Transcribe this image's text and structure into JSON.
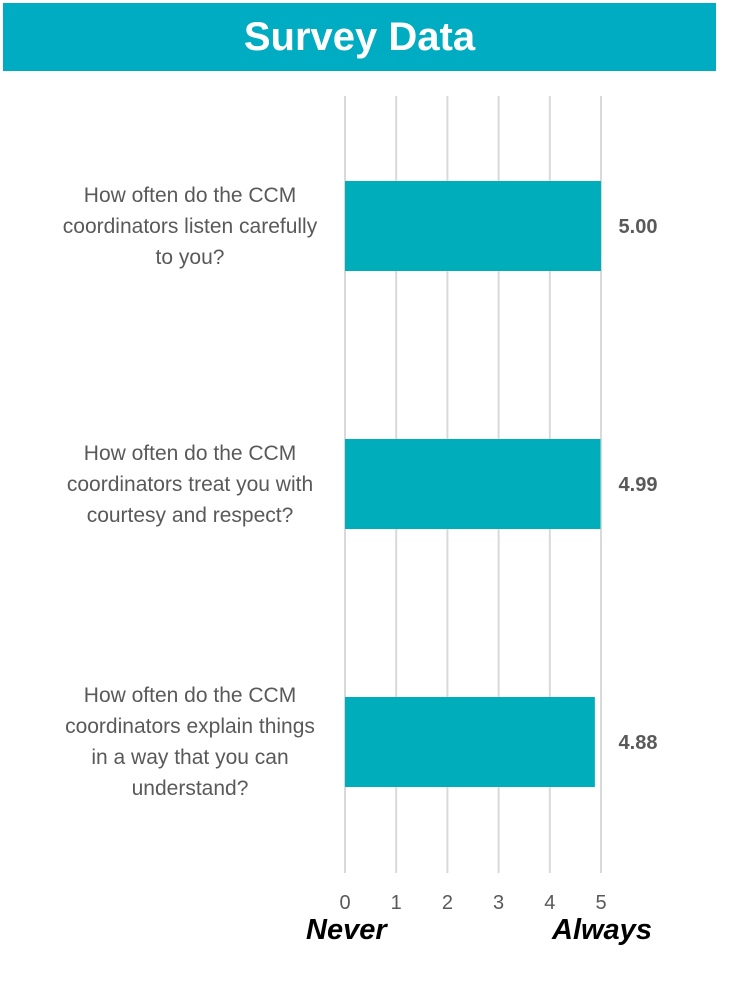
{
  "header": {
    "title": "Survey Data"
  },
  "colors": {
    "banner": "#00acc1",
    "bar": "#00adbb",
    "grid": "#d9d9d9",
    "text": "#595959"
  },
  "scale": {
    "min_label": "Never",
    "max_label": "Always"
  },
  "chart_data": {
    "type": "bar",
    "orientation": "horizontal",
    "title": "",
    "xlabel": "",
    "ylabel": "",
    "xlim": [
      0,
      5
    ],
    "xticks": [
      "0",
      "1",
      "2",
      "3",
      "4",
      "5"
    ],
    "grid": true,
    "categories": [
      "How often do the CCM coordinators listen carefully to you?",
      "How often do the CCM coordinators treat you with courtesy and respect?",
      "How often do the CCM coordinators explain things in a way that you can understand?"
    ],
    "values": [
      5.0,
      4.99,
      4.88
    ],
    "value_labels": [
      "5.00",
      "4.99",
      "4.88"
    ]
  }
}
